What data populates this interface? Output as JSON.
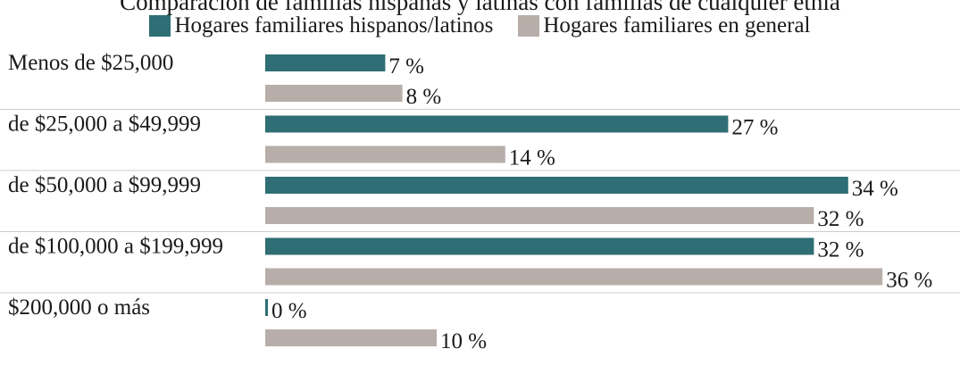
{
  "chart_data": {
    "type": "bar",
    "orientation": "horizontal",
    "title": "Comparación de familias hispanas y latinas con familias de cualquier etnia",
    "categories": [
      "Menos de $25,000",
      "de $25,000 a $49,999",
      "de $50,000 a $99,999",
      "de $100,000 a $199,999",
      "$200,000 o más"
    ],
    "series": [
      {
        "name": "Hogares familiares hispanos/latinos",
        "values": [
          7,
          27,
          34,
          32,
          0
        ],
        "labels": [
          "7 %",
          "27 %",
          "34 %",
          "32 %",
          "0 %"
        ],
        "color": "#2e6e74"
      },
      {
        "name": "Hogares familiares en general",
        "values": [
          8,
          14,
          32,
          36,
          10
        ],
        "labels": [
          "8 %",
          "14 %",
          "32 %",
          "36 %",
          "10 %"
        ],
        "color": "#b8aea9"
      }
    ],
    "xlim": [
      0,
      40
    ],
    "legend": "top",
    "grid": false,
    "separator_color": "#cccccc"
  }
}
